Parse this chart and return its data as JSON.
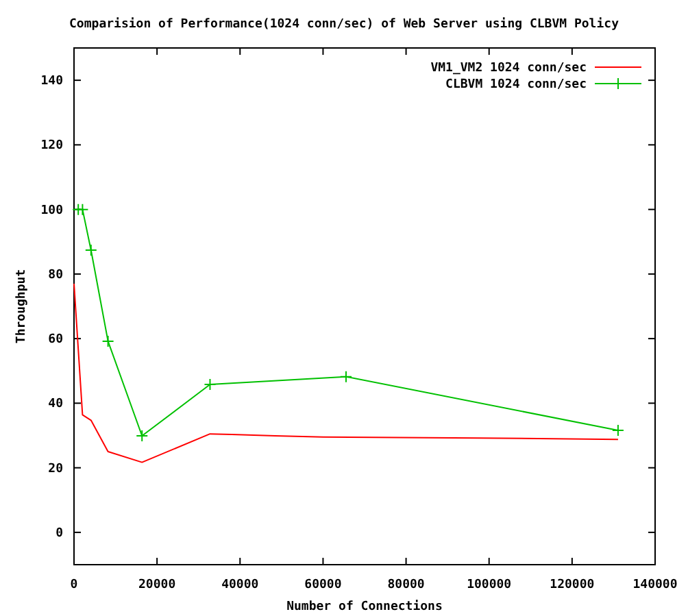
{
  "chart_data": {
    "type": "line",
    "title": "Comparision of Performance(1024 conn/sec) of Web Server using CLBVM Policy",
    "xlabel": "Number of Connections",
    "ylabel": "Throughput",
    "xlim": [
      0,
      140000
    ],
    "xticks": [
      0,
      20000,
      40000,
      60000,
      80000,
      100000,
      120000,
      140000
    ],
    "ylim": [
      -10,
      150
    ],
    "yticks": [
      0,
      20,
      40,
      60,
      80,
      100,
      120,
      140
    ],
    "grid": false,
    "legend": "top right",
    "series": [
      {
        "name": "VM1_VM2 1024 conn/sec",
        "color": "#ff0000",
        "marker": "none",
        "x": [
          0,
          2048,
          4096,
          8192,
          16384,
          32768,
          38000,
          48500,
          60000,
          97800,
          131072
        ],
        "values": [
          77,
          36.4,
          34.7,
          25,
          21.7,
          30.5,
          30.3,
          29.9,
          29.5,
          29.2,
          28.8
        ]
      },
      {
        "name": "CLBVM 1024 conn/sec",
        "color": "#00c000",
        "marker": "cross",
        "x": [
          1024,
          2048,
          4096,
          8192,
          16384,
          32768,
          65536,
          131072
        ],
        "values": [
          100,
          100,
          87.4,
          59.2,
          29.9,
          45.8,
          48.2,
          31.6
        ]
      }
    ]
  }
}
